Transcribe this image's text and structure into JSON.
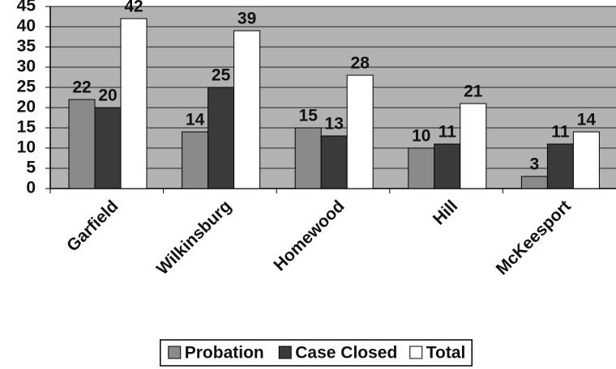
{
  "chart_data": {
    "type": "bar",
    "categories": [
      "Garfield",
      "Wilkinsburg",
      "Homewood",
      "Hill",
      "McKeesport"
    ],
    "series": [
      {
        "name": "Probation",
        "color": "#8a8a8a",
        "values": [
          22,
          14,
          15,
          10,
          3
        ]
      },
      {
        "name": "Case Closed",
        "color": "#3a3a3a",
        "values": [
          20,
          25,
          13,
          11,
          11
        ]
      },
      {
        "name": "Total",
        "color": "#ffffff",
        "values": [
          42,
          39,
          28,
          21,
          14
        ]
      }
    ],
    "ylim": [
      0,
      45
    ],
    "yticks": [
      0,
      5,
      10,
      15,
      20,
      25,
      30,
      35,
      40,
      45
    ],
    "grid": true,
    "legend": "bottom",
    "background": "#b2b2b2"
  }
}
